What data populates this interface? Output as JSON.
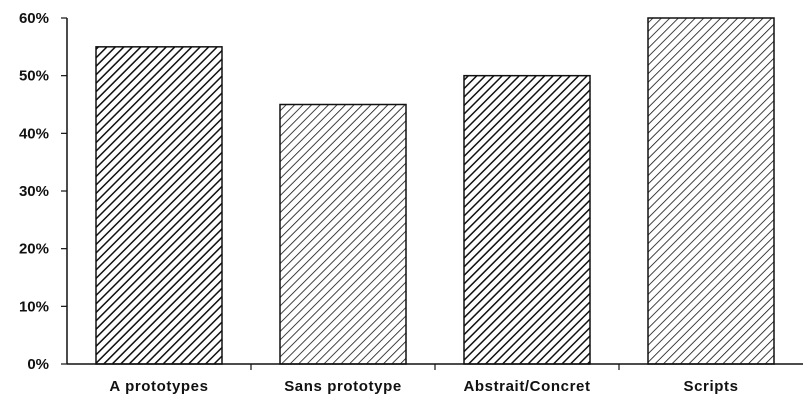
{
  "chart_data": {
    "type": "bar",
    "categories": [
      "A prototypes",
      "Sans prototype",
      "Abstrait/Concret",
      "Scripts"
    ],
    "values": [
      55,
      45,
      50,
      60
    ],
    "ylim": [
      0,
      60
    ],
    "yticks": [
      0,
      10,
      20,
      30,
      40,
      50,
      60
    ],
    "ytick_labels": [
      "0%",
      "10%",
      "20%",
      "30%",
      "40%",
      "50%",
      "60%"
    ],
    "title": "",
    "xlabel": "",
    "ylabel": "",
    "grid": false,
    "bar_patterns": [
      "hatch-dense",
      "hatch-light",
      "hatch-dense",
      "hatch-light"
    ],
    "colors": {
      "stroke": "#111111",
      "background": "#ffffff"
    }
  }
}
